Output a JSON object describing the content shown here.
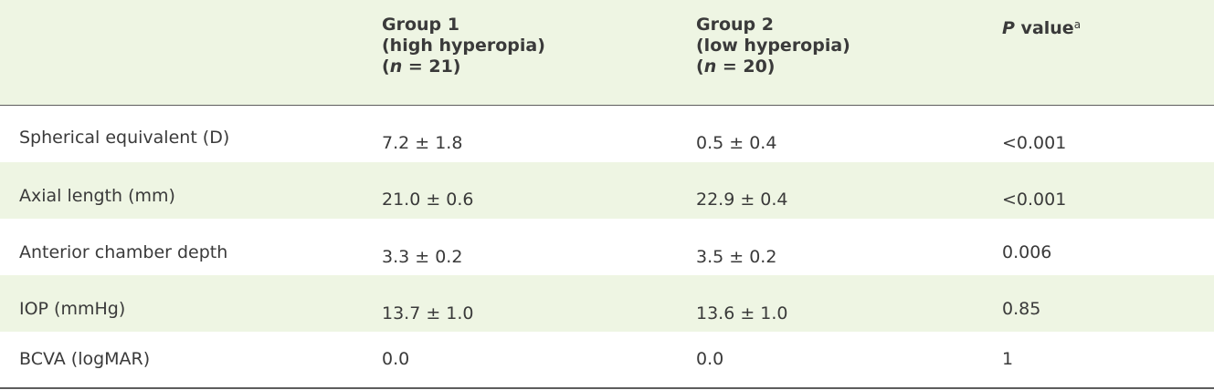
{
  "header": {
    "col1": {
      "line1": "Group 1",
      "line2": "(high hyperopia)",
      "line3_var": "n",
      "line3_rest": " = 21)",
      "line3_open": "("
    },
    "col2": {
      "line1": "Group 2",
      "line2": "(low hyperopia)",
      "line3_var": "n",
      "line3_rest": " = 20)",
      "line3_open": "("
    },
    "col3": {
      "var": "P",
      "label": " value",
      "footnote": "a"
    }
  },
  "rows": [
    {
      "label": "Spherical equivalent (D)",
      "g1": "7.2 ± 1.8",
      "g2": "0.5 ± 0.4",
      "p": "<0.001"
    },
    {
      "label": "Axial length (mm)",
      "g1": "21.0 ± 0.6",
      "g2": "22.9 ± 0.4",
      "p": "<0.001"
    },
    {
      "label": "Anterior chamber depth",
      "g1": "3.3 ± 0.2",
      "g2": "3.5 ± 0.2",
      "p": "0.006"
    },
    {
      "label": "IOP (mmHg)",
      "g1": "13.7 ± 1.0",
      "g2": "13.6 ± 1.0",
      "p": "0.85"
    },
    {
      "label": "BCVA (logMAR)",
      "g1": "0.0",
      "g2": "0.0",
      "p": "1"
    }
  ],
  "colors": {
    "shade": "#eef5e3",
    "rule": "#5d5d5d",
    "text": "#3a3a3a"
  }
}
